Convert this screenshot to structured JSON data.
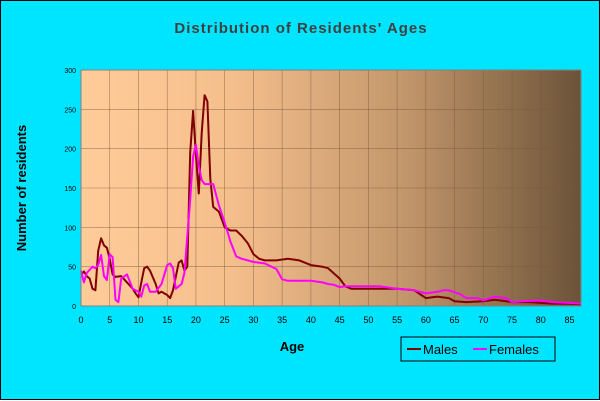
{
  "chart_data": {
    "type": "line",
    "title": "Distribution of Residents' Ages",
    "xlabel": "Age",
    "ylabel": "Number of residents",
    "xlim": [
      0,
      87
    ],
    "ylim": [
      0,
      300
    ],
    "x_ticks": [
      0,
      5,
      10,
      15,
      20,
      25,
      30,
      35,
      40,
      45,
      50,
      55,
      60,
      65,
      70,
      75,
      80,
      85
    ],
    "y_ticks": [
      0,
      50,
      100,
      150,
      200,
      250,
      300
    ],
    "grid": true,
    "legend_position": "bottom-right",
    "colors": {
      "background": "#00e5ff",
      "plot_light": "#ffcc99",
      "plot_dark": "#6b5338"
    },
    "series": [
      {
        "name": "Males",
        "color": "#800000",
        "points": [
          [
            0,
            40
          ],
          [
            0.5,
            44
          ],
          [
            1,
            38
          ],
          [
            1.5,
            35
          ],
          [
            2,
            22
          ],
          [
            2.5,
            20
          ],
          [
            3,
            70
          ],
          [
            3.5,
            86
          ],
          [
            4,
            77
          ],
          [
            4.5,
            74
          ],
          [
            5,
            60
          ],
          [
            5.5,
            40
          ],
          [
            6,
            37
          ],
          [
            7,
            38
          ],
          [
            8,
            30
          ],
          [
            9,
            22
          ],
          [
            9.5,
            16
          ],
          [
            10,
            11
          ],
          [
            10.5,
            30
          ],
          [
            11,
            48
          ],
          [
            11.5,
            50
          ],
          [
            12,
            45
          ],
          [
            13,
            28
          ],
          [
            13.5,
            16
          ],
          [
            14,
            18
          ],
          [
            15,
            14
          ],
          [
            15.5,
            10
          ],
          [
            16,
            20
          ],
          [
            17,
            55
          ],
          [
            17.5,
            58
          ],
          [
            18,
            45
          ],
          [
            18.5,
            50
          ],
          [
            19,
            195
          ],
          [
            19.5,
            248
          ],
          [
            20,
            192
          ],
          [
            20.5,
            143
          ],
          [
            21,
            220
          ],
          [
            21.5,
            268
          ],
          [
            22,
            260
          ],
          [
            22.5,
            162
          ],
          [
            23,
            126
          ],
          [
            24,
            120
          ],
          [
            25,
            100
          ],
          [
            26,
            96
          ],
          [
            27,
            96
          ],
          [
            28,
            89
          ],
          [
            29,
            80
          ],
          [
            30,
            66
          ],
          [
            31,
            60
          ],
          [
            32,
            58
          ],
          [
            34,
            58
          ],
          [
            36,
            60
          ],
          [
            38,
            58
          ],
          [
            40,
            52
          ],
          [
            42,
            50
          ],
          [
            43,
            48
          ],
          [
            45,
            35
          ],
          [
            46,
            25
          ],
          [
            47,
            22
          ],
          [
            50,
            22
          ],
          [
            55,
            22
          ],
          [
            58,
            20
          ],
          [
            60,
            10
          ],
          [
            62,
            12
          ],
          [
            64,
            10
          ],
          [
            65,
            6
          ],
          [
            67,
            5
          ],
          [
            70,
            6
          ],
          [
            72,
            8
          ],
          [
            74,
            6
          ],
          [
            75,
            5
          ],
          [
            78,
            5
          ],
          [
            80,
            4
          ],
          [
            82,
            3
          ],
          [
            85,
            3
          ],
          [
            87,
            2
          ]
        ]
      },
      {
        "name": "Females",
        "color": "#ff00ff",
        "points": [
          [
            0,
            45
          ],
          [
            0.5,
            30
          ],
          [
            1,
            42
          ],
          [
            2,
            50
          ],
          [
            2.5,
            48
          ],
          [
            3,
            52
          ],
          [
            3.5,
            65
          ],
          [
            4,
            38
          ],
          [
            4.5,
            33
          ],
          [
            5,
            66
          ],
          [
            5.5,
            62
          ],
          [
            6,
            8
          ],
          [
            6.5,
            5
          ],
          [
            7,
            35
          ],
          [
            8,
            40
          ],
          [
            9,
            22
          ],
          [
            10,
            18
          ],
          [
            10.5,
            12
          ],
          [
            11,
            26
          ],
          [
            11.5,
            28
          ],
          [
            12,
            18
          ],
          [
            13,
            18
          ],
          [
            14,
            28
          ],
          [
            15,
            52
          ],
          [
            15.5,
            54
          ],
          [
            16,
            48
          ],
          [
            16.5,
            22
          ],
          [
            17,
            25
          ],
          [
            17.5,
            28
          ],
          [
            18,
            42
          ],
          [
            19,
            135
          ],
          [
            19.5,
            190
          ],
          [
            20,
            205
          ],
          [
            20.5,
            178
          ],
          [
            21,
            160
          ],
          [
            21.5,
            155
          ],
          [
            22,
            155
          ],
          [
            23,
            155
          ],
          [
            24,
            128
          ],
          [
            25,
            106
          ],
          [
            26,
            82
          ],
          [
            27,
            63
          ],
          [
            28,
            60
          ],
          [
            30,
            56
          ],
          [
            32,
            54
          ],
          [
            34,
            47
          ],
          [
            35,
            34
          ],
          [
            36,
            32
          ],
          [
            40,
            32
          ],
          [
            42,
            30
          ],
          [
            43,
            28
          ],
          [
            44,
            27
          ],
          [
            45,
            24
          ],
          [
            46,
            25
          ],
          [
            48,
            25
          ],
          [
            50,
            25
          ],
          [
            52,
            25
          ],
          [
            55,
            22
          ],
          [
            58,
            20
          ],
          [
            60,
            16
          ],
          [
            62,
            18
          ],
          [
            63,
            20
          ],
          [
            64,
            20
          ],
          [
            66,
            15
          ],
          [
            67,
            10
          ],
          [
            69,
            10
          ],
          [
            70,
            7
          ],
          [
            72,
            12
          ],
          [
            74,
            10
          ],
          [
            75,
            5
          ],
          [
            77,
            6
          ],
          [
            80,
            7
          ],
          [
            82,
            5
          ],
          [
            85,
            4
          ],
          [
            87,
            3
          ]
        ]
      }
    ]
  }
}
